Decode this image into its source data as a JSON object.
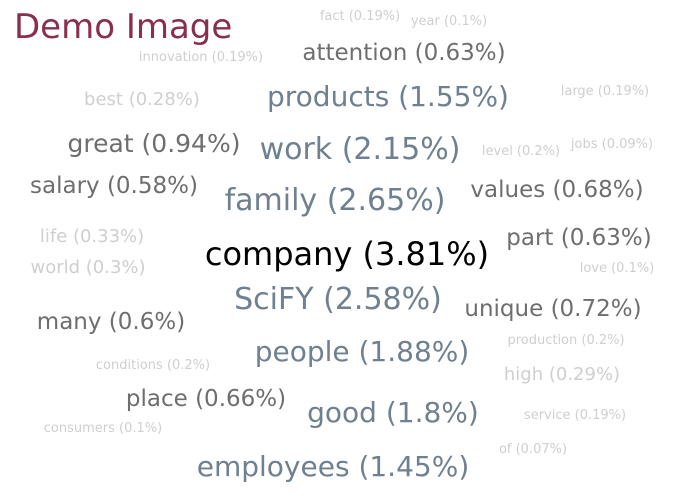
{
  "title": "Demo Image",
  "colors": {
    "title": "#8a2e50",
    "top": "#000000",
    "slate": "#6f8090",
    "gray": "#6e6e6e",
    "light": "#cfcfcf"
  },
  "chart_data": {
    "type": "wordcloud",
    "words": [
      {
        "text": "company (3.81%)",
        "word": "company",
        "value": 3.81
      },
      {
        "text": "family (2.65%)",
        "word": "family",
        "value": 2.65
      },
      {
        "text": "SciFY (2.58%)",
        "word": "SciFY",
        "value": 2.58
      },
      {
        "text": "work (2.15%)",
        "word": "work",
        "value": 2.15
      },
      {
        "text": "people (1.88%)",
        "word": "people",
        "value": 1.88
      },
      {
        "text": "good (1.8%)",
        "word": "good",
        "value": 1.8
      },
      {
        "text": "products (1.55%)",
        "word": "products",
        "value": 1.55
      },
      {
        "text": "employees (1.45%)",
        "word": "employees",
        "value": 1.45
      },
      {
        "text": "great (0.94%)",
        "word": "great",
        "value": 0.94
      },
      {
        "text": "unique (0.72%)",
        "word": "unique",
        "value": 0.72
      },
      {
        "text": "values (0.68%)",
        "word": "values",
        "value": 0.68
      },
      {
        "text": "place (0.66%)",
        "word": "place",
        "value": 0.66
      },
      {
        "text": "attention (0.63%)",
        "word": "attention",
        "value": 0.63
      },
      {
        "text": "part (0.63%)",
        "word": "part",
        "value": 0.63
      },
      {
        "text": "many (0.6%)",
        "word": "many",
        "value": 0.6
      },
      {
        "text": "salary (0.58%)",
        "word": "salary",
        "value": 0.58
      },
      {
        "text": "life (0.33%)",
        "word": "life",
        "value": 0.33
      },
      {
        "text": "world (0.3%)",
        "word": "world",
        "value": 0.3
      },
      {
        "text": "high (0.29%)",
        "word": "high",
        "value": 0.29
      },
      {
        "text": "best (0.28%)",
        "word": "best",
        "value": 0.28
      },
      {
        "text": "level (0.2%)",
        "word": "level",
        "value": 0.2
      },
      {
        "text": "conditions (0.2%)",
        "word": "conditions",
        "value": 0.2
      },
      {
        "text": "production (0.2%)",
        "word": "production",
        "value": 0.2
      },
      {
        "text": "fact (0.19%)",
        "word": "fact",
        "value": 0.19
      },
      {
        "text": "innovation (0.19%)",
        "word": "innovation",
        "value": 0.19
      },
      {
        "text": "large (0.19%)",
        "word": "large",
        "value": 0.19
      },
      {
        "text": "service (0.19%)",
        "word": "service",
        "value": 0.19
      },
      {
        "text": "year (0.1%)",
        "word": "year",
        "value": 0.1
      },
      {
        "text": "love (0.1%)",
        "word": "love",
        "value": 0.1
      },
      {
        "text": "consumers (0.1%)",
        "word": "consumers",
        "value": 0.1
      },
      {
        "text": "jobs (0.09%)",
        "word": "jobs",
        "value": 0.09
      },
      {
        "text": "of (0.07%)",
        "word": "of",
        "value": 0.07
      }
    ]
  }
}
